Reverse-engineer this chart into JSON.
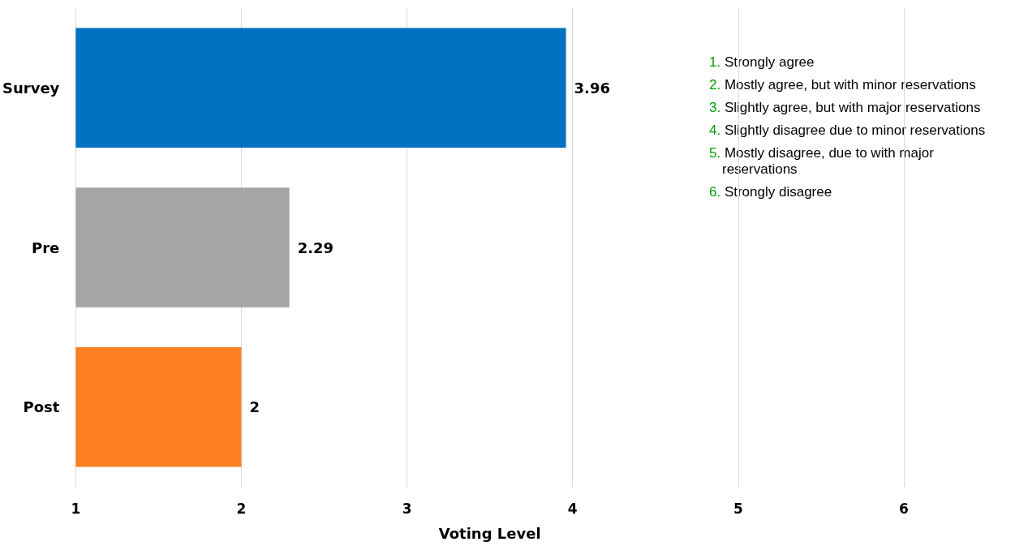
{
  "chart_data": {
    "type": "bar",
    "orientation": "horizontal",
    "xlabel": "Voting Level",
    "categories": [
      "Survey",
      "Pre",
      "Post"
    ],
    "values": [
      3.96,
      2.29,
      2
    ],
    "colors": [
      "#0070c0",
      "#a5a5a5",
      "#fd7f23"
    ],
    "xlim": [
      1,
      6
    ],
    "xticks": [
      1,
      2,
      3,
      4,
      5,
      6
    ],
    "grid": "x",
    "data_labels": true,
    "annotations": [
      "1. Strongly agree",
      "2. Mostly agree, but with minor reservations",
      "3. Slightly agree, but with major reservations",
      "4. Slightly disagree due to minor reservations",
      "5. Mostly disagree, due to with major\nreservations",
      "6. Strongly disagree"
    ]
  }
}
